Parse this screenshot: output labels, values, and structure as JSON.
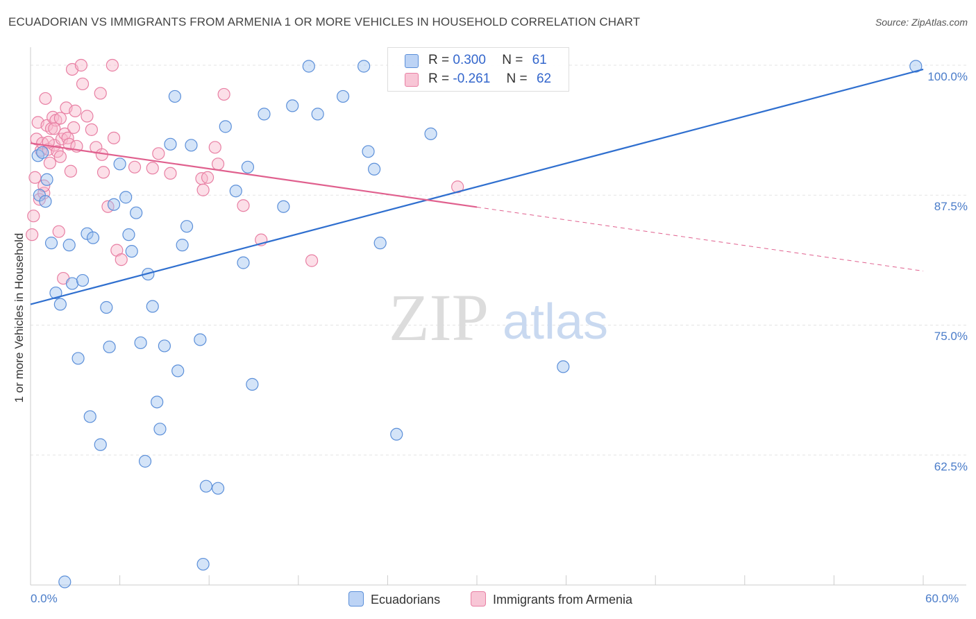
{
  "title": "ECUADORIAN VS IMMIGRANTS FROM ARMENIA 1 OR MORE VEHICLES IN HOUSEHOLD CORRELATION CHART",
  "source": "Source: ZipAtlas.com",
  "watermark": {
    "zip": "ZIP",
    "atlas": "atlas"
  },
  "colors": {
    "blue": "#5b8fd9",
    "blue_line": "#2f6fcf",
    "pink": "#e87fa3",
    "pink_line": "#e0608e",
    "tick_text": "#4a7cc9"
  },
  "legend": {
    "rows": [
      {
        "r_label": "R =",
        "r_value": "0.300",
        "n_label": "N =",
        "n_value": "61"
      },
      {
        "r_label": "R =",
        "r_value": "-0.261",
        "n_label": "N =",
        "n_value": "62"
      }
    ]
  },
  "bottom_legend": {
    "ecuadorians": "Ecuadorians",
    "armenia": "Immigrants from Armenia"
  },
  "chart_data": {
    "type": "scatter",
    "title": "ECUADORIAN VS IMMIGRANTS FROM ARMENIA 1 OR MORE VEHICLES IN HOUSEHOLD CORRELATION CHART",
    "xlabel": "",
    "ylabel": "1 or more Vehicles in Household",
    "xlim": [
      0,
      60
    ],
    "ylim": [
      50,
      101
    ],
    "x_tick_labels": [
      "0.0%",
      "60.0%"
    ],
    "y_ticks": [
      {
        "value": 100,
        "label": "100.0%"
      },
      {
        "value": 87.5,
        "label": "87.5%"
      },
      {
        "value": 75,
        "label": "75.0%"
      },
      {
        "value": 62.5,
        "label": "62.5%"
      }
    ],
    "series": [
      {
        "name": "Ecuadorians",
        "color": "#5b8fd9",
        "trend": {
          "x0": 0,
          "y0": 77.0,
          "x1": 60,
          "y1": 99.6,
          "dash_from": null
        },
        "points": [
          [
            0.5,
            91.3
          ],
          [
            0.8,
            91.6
          ],
          [
            1.1,
            89.0
          ],
          [
            1.4,
            82.9
          ],
          [
            1.7,
            78.1
          ],
          [
            2.0,
            77.0
          ],
          [
            2.6,
            82.7
          ],
          [
            2.8,
            79.0
          ],
          [
            3.2,
            71.8
          ],
          [
            3.5,
            79.3
          ],
          [
            3.8,
            83.8
          ],
          [
            4.0,
            66.2
          ],
          [
            4.2,
            83.4
          ],
          [
            4.7,
            63.5
          ],
          [
            5.1,
            76.7
          ],
          [
            5.3,
            72.9
          ],
          [
            5.6,
            86.6
          ],
          [
            6.0,
            90.5
          ],
          [
            6.4,
            87.3
          ],
          [
            6.6,
            83.7
          ],
          [
            6.8,
            82.1
          ],
          [
            7.1,
            85.8
          ],
          [
            7.4,
            73.3
          ],
          [
            7.7,
            61.9
          ],
          [
            7.9,
            79.9
          ],
          [
            8.2,
            76.8
          ],
          [
            8.5,
            67.6
          ],
          [
            8.7,
            65.0
          ],
          [
            9.0,
            73.0
          ],
          [
            9.4,
            92.4
          ],
          [
            9.7,
            97.0
          ],
          [
            9.9,
            70.6
          ],
          [
            10.2,
            82.7
          ],
          [
            10.5,
            84.5
          ],
          [
            10.8,
            92.3
          ],
          [
            11.4,
            73.6
          ],
          [
            11.6,
            52.0
          ],
          [
            11.8,
            59.5
          ],
          [
            12.6,
            59.3
          ],
          [
            13.1,
            94.1
          ],
          [
            13.8,
            87.9
          ],
          [
            14.3,
            81.0
          ],
          [
            14.9,
            69.3
          ],
          [
            14.6,
            90.2
          ],
          [
            15.7,
            95.3
          ],
          [
            17.0,
            86.4
          ],
          [
            17.6,
            96.1
          ],
          [
            18.7,
            99.9
          ],
          [
            19.3,
            95.3
          ],
          [
            21.0,
            97.0
          ],
          [
            22.4,
            99.9
          ],
          [
            22.7,
            91.7
          ],
          [
            23.1,
            90.0
          ],
          [
            23.5,
            82.9
          ],
          [
            24.6,
            64.5
          ],
          [
            26.9,
            93.4
          ],
          [
            35.8,
            71.0
          ],
          [
            59.5,
            99.9
          ],
          [
            2.3,
            50.3
          ],
          [
            0.6,
            87.5
          ],
          [
            1.0,
            86.9
          ]
        ]
      },
      {
        "name": "Immigrants from Armenia",
        "color": "#e87fa3",
        "trend": {
          "x0": 0,
          "y0": 92.5,
          "x1": 60,
          "y1": 80.2,
          "dash_from": 30.0
        },
        "points": [
          [
            0.1,
            83.7
          ],
          [
            0.3,
            89.2
          ],
          [
            0.4,
            92.9
          ],
          [
            0.5,
            94.5
          ],
          [
            0.6,
            87.1
          ],
          [
            0.7,
            91.8
          ],
          [
            0.8,
            92.5
          ],
          [
            0.9,
            87.7
          ],
          [
            1.0,
            96.8
          ],
          [
            1.1,
            94.2
          ],
          [
            1.2,
            91.9
          ],
          [
            1.3,
            90.6
          ],
          [
            1.4,
            93.9
          ],
          [
            1.5,
            95.0
          ],
          [
            1.6,
            92.3
          ],
          [
            1.7,
            94.7
          ],
          [
            1.8,
            91.7
          ],
          [
            1.9,
            84.0
          ],
          [
            2.0,
            94.9
          ],
          [
            2.1,
            92.9
          ],
          [
            2.2,
            79.5
          ],
          [
            2.3,
            93.4
          ],
          [
            2.4,
            95.9
          ],
          [
            2.5,
            93.0
          ],
          [
            2.6,
            92.4
          ],
          [
            2.7,
            89.8
          ],
          [
            2.8,
            99.6
          ],
          [
            2.9,
            94.0
          ],
          [
            3.1,
            92.2
          ],
          [
            3.4,
            100.0
          ],
          [
            3.5,
            98.2
          ],
          [
            3.8,
            95.1
          ],
          [
            4.1,
            93.8
          ],
          [
            4.4,
            92.1
          ],
          [
            4.7,
            97.3
          ],
          [
            4.8,
            91.4
          ],
          [
            4.9,
            89.7
          ],
          [
            5.2,
            86.4
          ],
          [
            5.5,
            100.0
          ],
          [
            5.6,
            93.0
          ],
          [
            5.8,
            82.2
          ],
          [
            6.1,
            81.3
          ],
          [
            7.0,
            90.2
          ],
          [
            8.2,
            90.1
          ],
          [
            8.6,
            91.5
          ],
          [
            9.4,
            89.6
          ],
          [
            11.5,
            89.1
          ],
          [
            11.6,
            88.0
          ],
          [
            11.9,
            89.2
          ],
          [
            12.4,
            92.1
          ],
          [
            12.6,
            90.5
          ],
          [
            13.0,
            97.2
          ],
          [
            14.3,
            86.5
          ],
          [
            15.5,
            83.2
          ],
          [
            18.9,
            81.2
          ],
          [
            28.7,
            88.3
          ],
          [
            0.2,
            85.5
          ],
          [
            1.6,
            93.9
          ],
          [
            2.0,
            91.2
          ],
          [
            3.0,
            95.6
          ],
          [
            0.9,
            88.4
          ],
          [
            1.2,
            92.6
          ]
        ]
      }
    ]
  }
}
